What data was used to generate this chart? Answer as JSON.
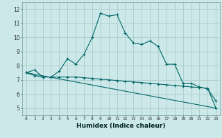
{
  "title": "",
  "xlabel": "Humidex (Indice chaleur)",
  "background_color": "#cce8e8",
  "grid_color": "#aacccc",
  "line_color": "#006666",
  "xlim": [
    -0.5,
    23.5
  ],
  "ylim": [
    4.5,
    12.5
  ],
  "xticks": [
    0,
    1,
    2,
    3,
    4,
    5,
    6,
    7,
    8,
    9,
    10,
    11,
    12,
    13,
    14,
    15,
    16,
    17,
    18,
    19,
    20,
    21,
    22,
    23
  ],
  "yticks": [
    5,
    6,
    7,
    8,
    9,
    10,
    11,
    12
  ],
  "series1_x": [
    0,
    1,
    2,
    3,
    4,
    5,
    6,
    7,
    8,
    9,
    10,
    11,
    12,
    13,
    14,
    15,
    16,
    17,
    18,
    19,
    20,
    21,
    22,
    23
  ],
  "series1_y": [
    7.5,
    7.7,
    7.2,
    7.2,
    7.6,
    8.5,
    8.1,
    8.8,
    10.0,
    11.7,
    11.5,
    11.6,
    10.3,
    9.6,
    9.5,
    9.75,
    9.35,
    8.1,
    8.1,
    6.75,
    6.75,
    6.5,
    6.35,
    5.5
  ],
  "series2_x": [
    0,
    1,
    2,
    3,
    4,
    5,
    6,
    7,
    8,
    9,
    10,
    11,
    12,
    13,
    14,
    15,
    16,
    17,
    18,
    19,
    20,
    21,
    22,
    23
  ],
  "series2_y": [
    7.5,
    7.3,
    7.2,
    7.2,
    7.2,
    7.2,
    7.2,
    7.15,
    7.1,
    7.05,
    7.0,
    6.95,
    6.9,
    6.85,
    6.8,
    6.75,
    6.7,
    6.65,
    6.6,
    6.55,
    6.5,
    6.45,
    6.4,
    5.0
  ],
  "series3_x": [
    0,
    23
  ],
  "series3_y": [
    7.5,
    5.0
  ]
}
